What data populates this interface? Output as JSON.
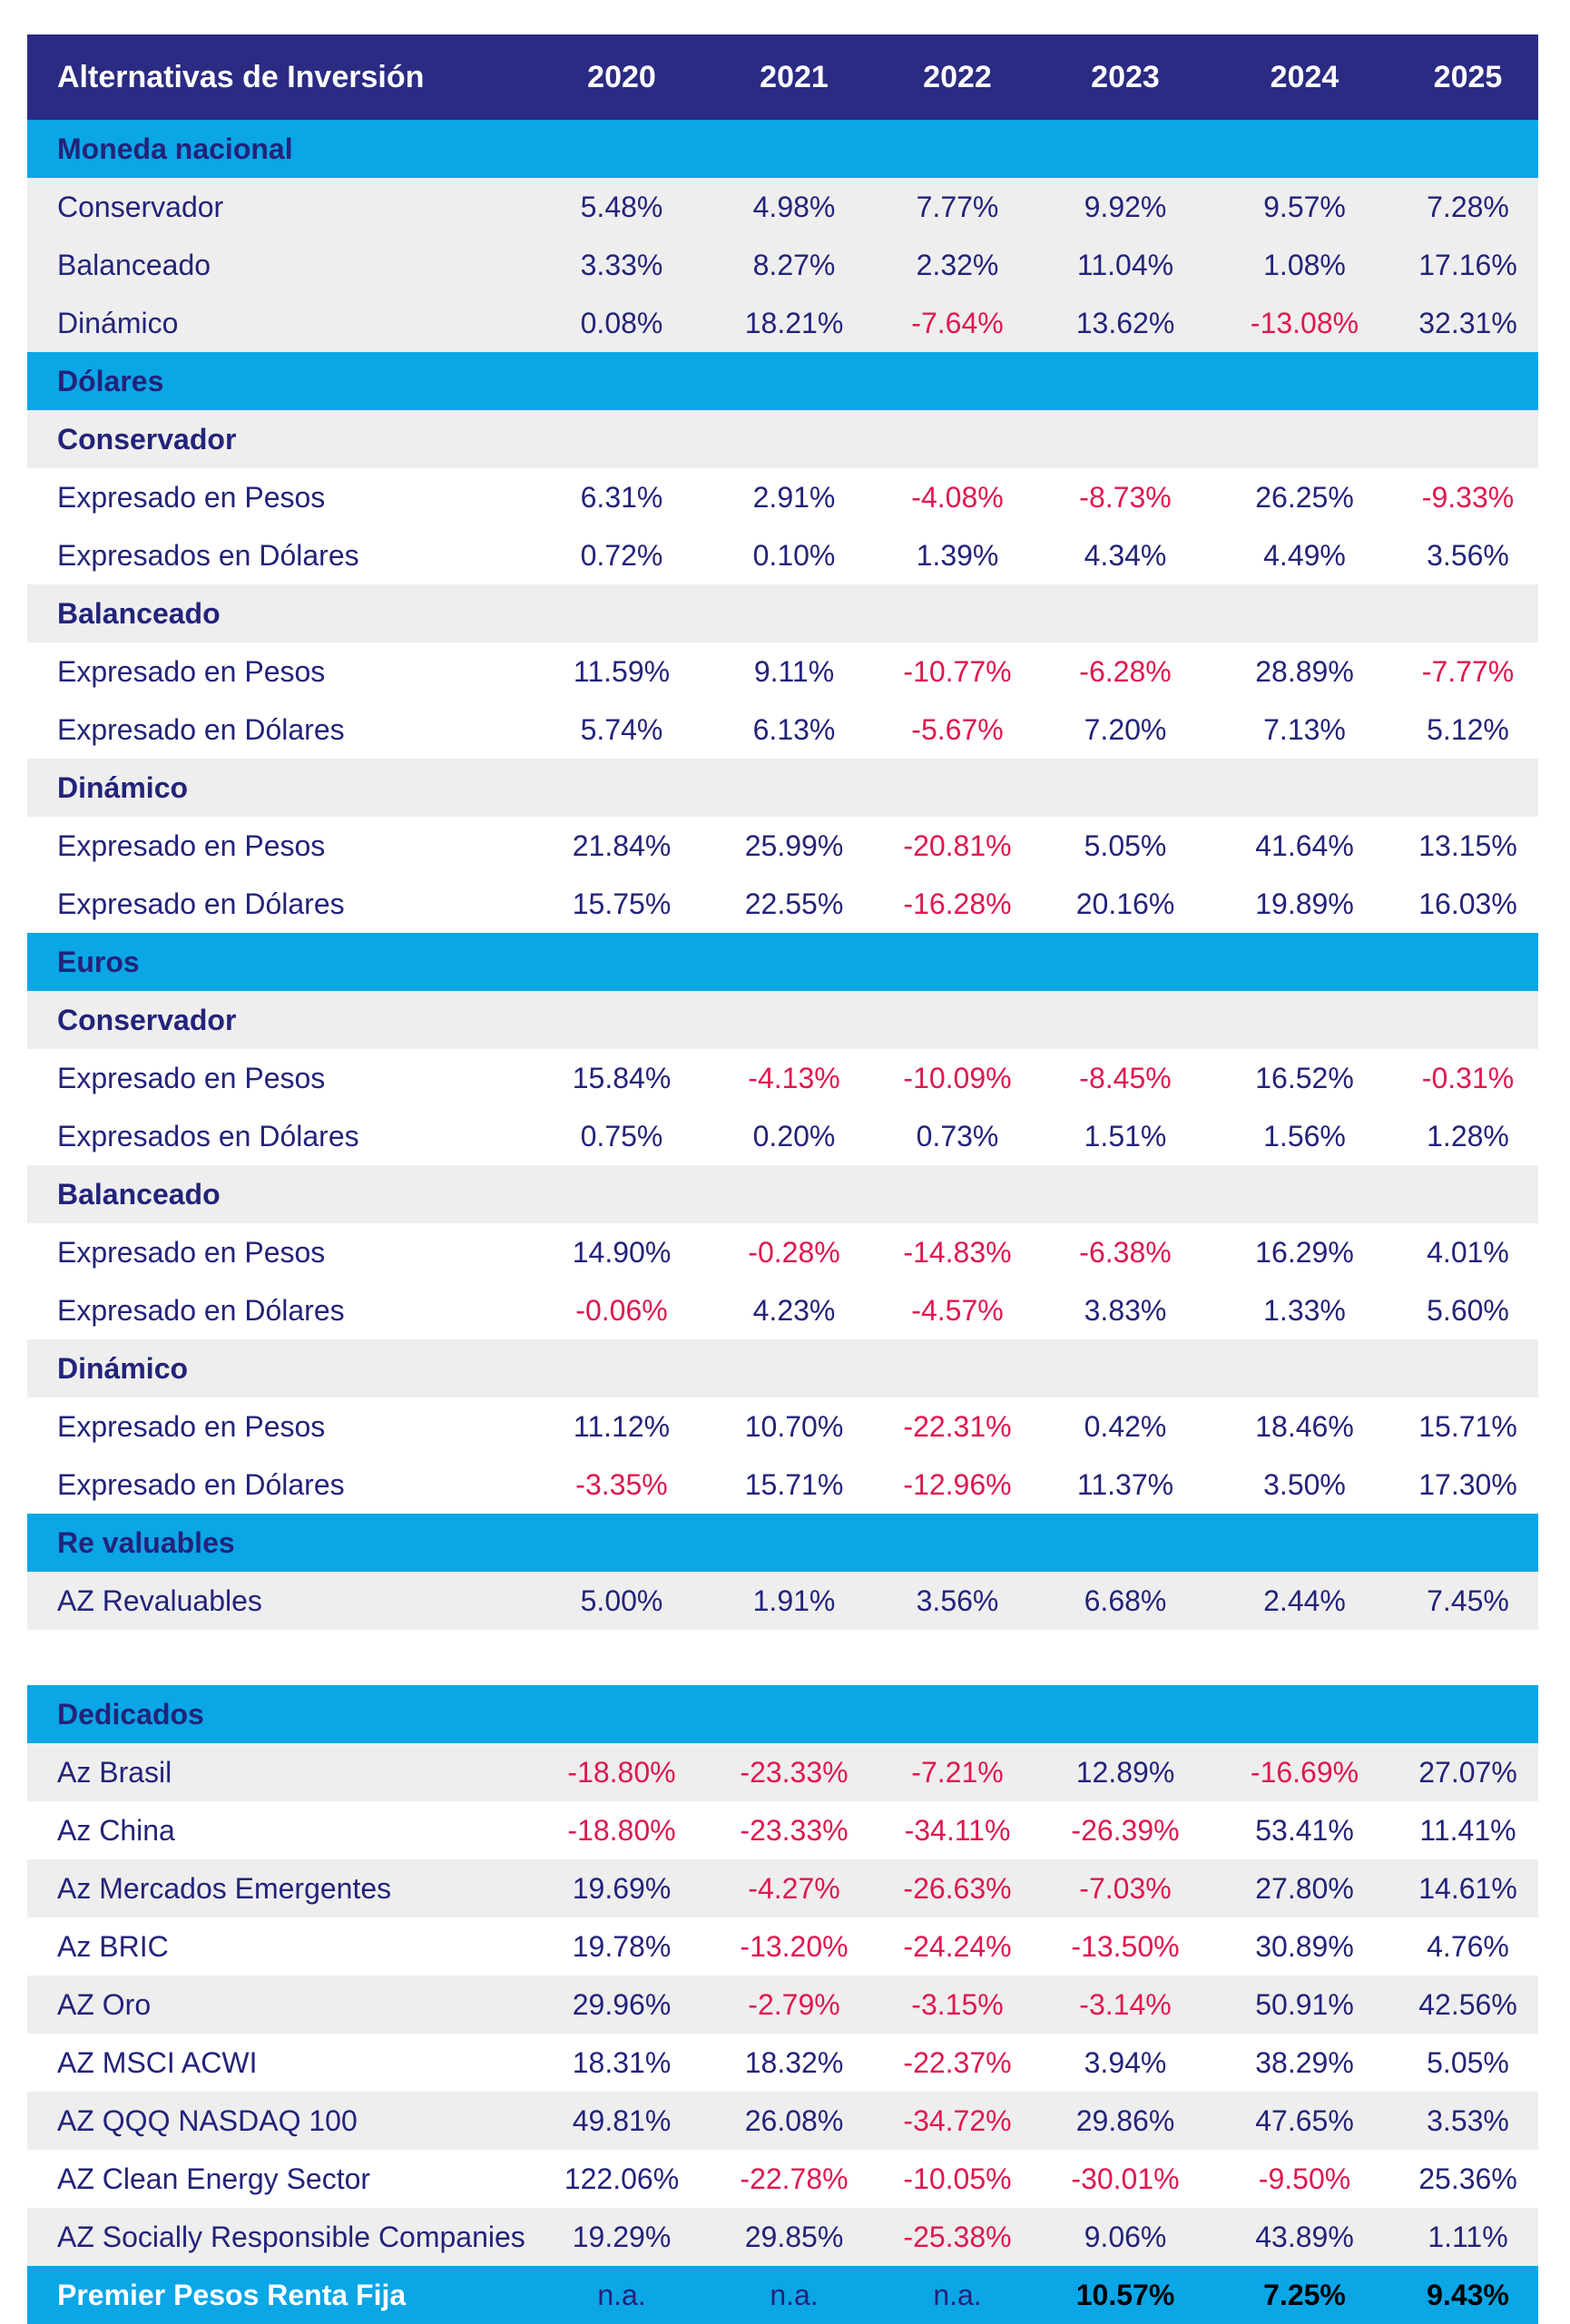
{
  "header": {
    "title": "Alternativas de Inversión",
    "years": [
      "2020",
      "2021",
      "2022",
      "2023",
      "2024",
      "2025"
    ]
  },
  "table1": [
    {
      "type": "section",
      "label": "Moneda nacional"
    },
    {
      "type": "data",
      "bg": "gray",
      "label": "Conservador",
      "values": [
        "5.48%",
        "4.98%",
        "7.77%",
        "9.92%",
        "9.57%",
        "7.28%"
      ]
    },
    {
      "type": "data",
      "bg": "gray",
      "label": "Balanceado",
      "values": [
        "3.33%",
        "8.27%",
        "2.32%",
        "11.04%",
        "1.08%",
        "17.16%"
      ]
    },
    {
      "type": "data",
      "bg": "gray",
      "label": "Dinámico",
      "values": [
        "0.08%",
        "18.21%",
        "-7.64%",
        "13.62%",
        "-13.08%",
        "32.31%"
      ]
    },
    {
      "type": "section",
      "label": "Dólares"
    },
    {
      "type": "sub",
      "label": "Conservador"
    },
    {
      "type": "data",
      "bg": "white",
      "label": "Expresado en Pesos",
      "values": [
        "6.31%",
        "2.91%",
        "-4.08%",
        "-8.73%",
        "26.25%",
        "-9.33%"
      ]
    },
    {
      "type": "data",
      "bg": "white",
      "label": "Expresados en Dólares",
      "values": [
        "0.72%",
        "0.10%",
        "1.39%",
        "4.34%",
        "4.49%",
        "3.56%"
      ]
    },
    {
      "type": "sub",
      "label": "Balanceado"
    },
    {
      "type": "data",
      "bg": "white",
      "label": "Expresado en Pesos",
      "values": [
        "11.59%",
        "9.11%",
        "-10.77%",
        "-6.28%",
        "28.89%",
        "-7.77%"
      ]
    },
    {
      "type": "data",
      "bg": "white",
      "label": "Expresado en Dólares",
      "values": [
        "5.74%",
        "6.13%",
        "-5.67%",
        "7.20%",
        "7.13%",
        "5.12%"
      ]
    },
    {
      "type": "sub",
      "label": "Dinámico"
    },
    {
      "type": "data",
      "bg": "white",
      "label": "Expresado en Pesos",
      "values": [
        "21.84%",
        "25.99%",
        "-20.81%",
        "5.05%",
        "41.64%",
        "13.15%"
      ]
    },
    {
      "type": "data",
      "bg": "white",
      "label": "Expresado en Dólares",
      "values": [
        "15.75%",
        "22.55%",
        "-16.28%",
        "20.16%",
        "19.89%",
        "16.03%"
      ]
    },
    {
      "type": "section",
      "label": "Euros"
    },
    {
      "type": "sub",
      "label": "Conservador"
    },
    {
      "type": "data",
      "bg": "white",
      "label": "Expresado en Pesos",
      "values": [
        "15.84%",
        "-4.13%",
        "-10.09%",
        "-8.45%",
        "16.52%",
        "-0.31%"
      ]
    },
    {
      "type": "data",
      "bg": "white",
      "label": "Expresados en Dólares",
      "values": [
        "0.75%",
        "0.20%",
        "0.73%",
        "1.51%",
        "1.56%",
        "1.28%"
      ]
    },
    {
      "type": "sub",
      "label": "Balanceado"
    },
    {
      "type": "data",
      "bg": "white",
      "label": "Expresado en Pesos",
      "values": [
        "14.90%",
        "-0.28%",
        "-14.83%",
        "-6.38%",
        "16.29%",
        "4.01%"
      ]
    },
    {
      "type": "data",
      "bg": "white",
      "label": "Expresado en Dólares",
      "values": [
        "-0.06%",
        "4.23%",
        "-4.57%",
        "3.83%",
        "1.33%",
        "5.60%"
      ]
    },
    {
      "type": "sub",
      "label": "Dinámico"
    },
    {
      "type": "data",
      "bg": "white",
      "label": "Expresado en Pesos",
      "values": [
        "11.12%",
        "10.70%",
        "-22.31%",
        "0.42%",
        "18.46%",
        "15.71%"
      ]
    },
    {
      "type": "data",
      "bg": "white",
      "label": "Expresado en Dólares",
      "values": [
        "-3.35%",
        "15.71%",
        "-12.96%",
        "11.37%",
        "3.50%",
        "17.30%"
      ]
    },
    {
      "type": "section",
      "label": "Re valuables"
    },
    {
      "type": "data",
      "bg": "gray",
      "label": "AZ Revaluables",
      "values": [
        "5.00%",
        "1.91%",
        "3.56%",
        "6.68%",
        "2.44%",
        "7.45%"
      ]
    }
  ],
  "table2": [
    {
      "type": "section",
      "label": "Dedicados"
    },
    {
      "type": "data",
      "bg": "gray",
      "label": "Az Brasil",
      "values": [
        "-18.80%",
        "-23.33%",
        "-7.21%",
        "12.89%",
        "-16.69%",
        "27.07%"
      ]
    },
    {
      "type": "data",
      "bg": "white",
      "label": "Az China",
      "values": [
        "-18.80%",
        "-23.33%",
        "-34.11%",
        "-26.39%",
        "53.41%",
        "11.41%"
      ]
    },
    {
      "type": "data",
      "bg": "gray",
      "label": "Az Mercados Emergentes",
      "values": [
        "19.69%",
        "-4.27%",
        "-26.63%",
        "-7.03%",
        "27.80%",
        "14.61%"
      ]
    },
    {
      "type": "data",
      "bg": "white",
      "label": "Az BRIC",
      "values": [
        "19.78%",
        "-13.20%",
        "-24.24%",
        "-13.50%",
        "30.89%",
        "4.76%"
      ]
    },
    {
      "type": "data",
      "bg": "gray",
      "label": "AZ Oro",
      "values": [
        "29.96%",
        "-2.79%",
        "-3.15%",
        "-3.14%",
        "50.91%",
        "42.56%"
      ]
    },
    {
      "type": "data",
      "bg": "white",
      "label": "AZ MSCI ACWI",
      "values": [
        "18.31%",
        "18.32%",
        "-22.37%",
        "3.94%",
        "38.29%",
        "5.05%"
      ]
    },
    {
      "type": "data",
      "bg": "gray",
      "label": "AZ QQQ NASDAQ 100",
      "values": [
        "49.81%",
        "26.08%",
        "-34.72%",
        "29.86%",
        "47.65%",
        "3.53%"
      ]
    },
    {
      "type": "data",
      "bg": "white",
      "label": "AZ Clean Energy Sector",
      "values": [
        "122.06%",
        "-22.78%",
        "-10.05%",
        "-30.01%",
        "-9.50%",
        "25.36%"
      ]
    },
    {
      "type": "data",
      "bg": "gray",
      "label": "AZ Socially Responsible Companies",
      "values": [
        "19.29%",
        "29.85%",
        "-25.38%",
        "9.06%",
        "43.89%",
        "1.11%"
      ]
    },
    {
      "type": "section-bottom",
      "label": "Premier Pesos Renta Fija",
      "values": [
        "n.a.",
        "n.a.",
        "n.a.",
        "10.57%",
        "7.25%",
        "9.43%"
      ]
    }
  ]
}
